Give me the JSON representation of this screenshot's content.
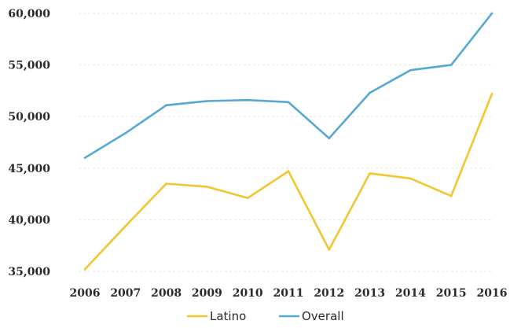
{
  "chart_data": {
    "type": "line",
    "categories": [
      "2006",
      "2007",
      "2008",
      "2009",
      "2010",
      "2011",
      "2012",
      "2013",
      "2014",
      "2015",
      "2016"
    ],
    "series": [
      {
        "name": "Latino",
        "color": "#f2c531",
        "values": [
          35200,
          39400,
          43500,
          43200,
          42100,
          44700,
          37100,
          44500,
          44000,
          42300,
          52200
        ]
      },
      {
        "name": "Overall",
        "color": "#56a8d4",
        "values": [
          46000,
          48400,
          51100,
          51500,
          51600,
          51400,
          47900,
          52300,
          54500,
          55000,
          60000
        ]
      }
    ],
    "y_ticks": [
      "35,000",
      "40,000",
      "45,000",
      "50,000",
      "55,000",
      "60,000"
    ],
    "ylim": [
      35000,
      60000
    ],
    "title": "",
    "xlabel": "",
    "ylabel": "",
    "grid": true,
    "grid_color": "#e6e6e6",
    "legend_position": "bottom-center"
  }
}
